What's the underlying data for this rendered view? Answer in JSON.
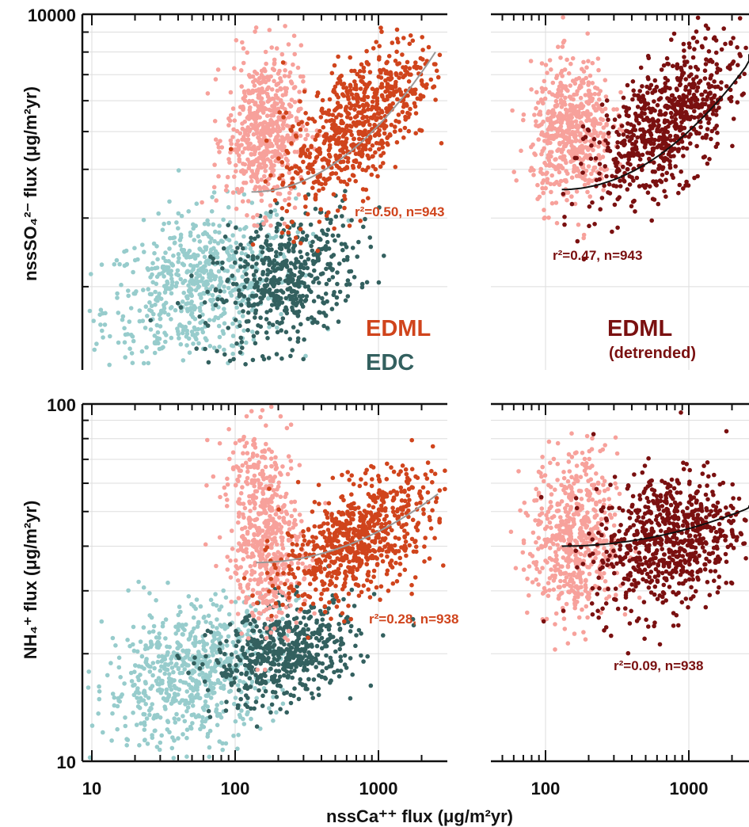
{
  "colors": {
    "edml": "#d0441c",
    "edml_light": "#f7a19b",
    "edml_detrended": "#7a1010",
    "edc": "#33605f",
    "edc_light": "#97cccc",
    "fit_left": "#999999",
    "fit_right": "#111111",
    "grid": "#dddddd"
  },
  "labels": {
    "x_axis": "nssCa⁺⁺ flux (μg/m²yr)",
    "y_axis_top": "nssSO₄²⁻ flux (μg/m²yr)",
    "y_axis_bottom": "NH₄⁺ flux (μg/m²yr)",
    "legend_edml": "EDML",
    "legend_edc": "EDC",
    "legend_edml_detrended": "EDML",
    "legend_detrended_note": "(detrended)"
  },
  "chart_data": [
    {
      "type": "scatter",
      "panel": "top-left",
      "xlabel": "nssCa⁺⁺ flux (μg/m²yr)",
      "ylabel": "nssSO₄²⁻ flux (μg/m²yr)",
      "x_scale": "log",
      "y_scale": "log",
      "xlim": [
        10,
        3000
      ],
      "ylim": [
        1000,
        10000
      ],
      "x_ticks": [
        "10",
        "100",
        "1000"
      ],
      "y_ticks": [
        "10000"
      ],
      "grid": true,
      "series": [
        {
          "name": "EDML",
          "color": "#d0441c",
          "light_color": "#f7a19b",
          "x_range": [
            120,
            2400
          ],
          "y_range": [
            2500,
            9000
          ],
          "n": 943
        },
        {
          "name": "EDC",
          "color": "#33605f",
          "light_color": "#97cccc",
          "x_range": [
            10,
            700
          ],
          "y_range": [
            1300,
            2900
          ]
        }
      ],
      "fit": {
        "series": "EDML",
        "x_range": [
          130,
          2500
        ],
        "y_range": [
          3500,
          8000
        ]
      },
      "annotation": "r²=0.50, n=943"
    },
    {
      "type": "scatter",
      "panel": "top-right",
      "xlabel": "nssCa⁺⁺ flux (μg/m²yr)",
      "x_scale": "log",
      "y_scale": "log",
      "xlim": [
        50,
        3000
      ],
      "ylim": [
        1000,
        10000
      ],
      "grid": true,
      "series": [
        {
          "name": "EDML (detrended)",
          "color": "#7a1010",
          "light_color": "#f7a19b",
          "x_range": [
            60,
            2800
          ],
          "y_range": [
            2500,
            9500
          ],
          "n": 943
        }
      ],
      "fit": {
        "series": "EDML (detrended)",
        "x_range": [
          130,
          2900
        ],
        "y_range": [
          3550,
          7900
        ]
      },
      "annotation": "r²=0.47, n=943"
    },
    {
      "type": "scatter",
      "panel": "bottom-left",
      "xlabel": "nssCa⁺⁺ flux (μg/m²yr)",
      "ylabel": "NH₄⁺ flux (μg/m²yr)",
      "x_scale": "log",
      "y_scale": "log",
      "xlim": [
        10,
        3000
      ],
      "ylim": [
        10,
        100
      ],
      "x_ticks": [
        "10",
        "100",
        "1000"
      ],
      "y_ticks": [
        "10",
        "100"
      ],
      "grid": true,
      "series": [
        {
          "name": "EDML",
          "color": "#d0441c",
          "light_color": "#f7a19b",
          "x_range": [
            100,
            2500
          ],
          "y_range": [
            20,
            95
          ],
          "n": 938
        },
        {
          "name": "EDC",
          "color": "#33605f",
          "light_color": "#97cccc",
          "x_range": [
            10,
            800
          ],
          "y_range": [
            10,
            60
          ]
        }
      ],
      "fit": {
        "series": "EDML",
        "x_range": [
          140,
          2600
        ],
        "y_range": [
          36,
          56
        ]
      },
      "annotation": "r²=0.28, n=938"
    },
    {
      "type": "scatter",
      "panel": "bottom-right",
      "xlabel": "nssCa⁺⁺ flux (μg/m²yr)",
      "x_scale": "log",
      "y_scale": "log",
      "xlim": [
        50,
        3000
      ],
      "ylim": [
        10,
        100
      ],
      "x_ticks": [
        "100",
        "1000"
      ],
      "grid": true,
      "series": [
        {
          "name": "EDML (detrended)",
          "color": "#7a1010",
          "light_color": "#f7a19b",
          "x_range": [
            60,
            2800
          ],
          "y_range": [
            14,
            95
          ],
          "n": 938
        }
      ],
      "fit": {
        "series": "EDML (detrended)",
        "x_range": [
          130,
          2900
        ],
        "y_range": [
          40,
          52
        ]
      },
      "annotation": "r²=0.09, n=938"
    }
  ]
}
